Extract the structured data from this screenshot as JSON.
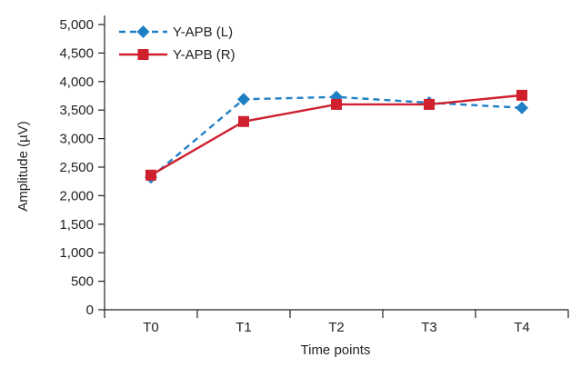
{
  "chart_data": {
    "type": "line",
    "categories": [
      "T0",
      "T1",
      "T2",
      "T3",
      "T4"
    ],
    "series": [
      {
        "name": "Y-APB (L)",
        "values": [
          2320,
          3690,
          3730,
          3630,
          3540
        ],
        "color": "#1f7fc4",
        "line_style": "dashed",
        "marker": "diamond"
      },
      {
        "name": "Y-APB (R)",
        "values": [
          2360,
          3300,
          3600,
          3600,
          3760
        ],
        "color": "#d0202e",
        "line_style": "solid",
        "marker": "square"
      }
    ],
    "xlabel": "Time points",
    "ylabel": "Amplitude (µV)",
    "ylim": [
      0,
      5000
    ],
    "yticks": [
      0,
      500,
      1000,
      1500,
      2000,
      2500,
      3000,
      3500,
      4000,
      4500,
      5000
    ],
    "ytick_labels": [
      "0",
      "500",
      "1,000",
      "1,500",
      "2,000",
      "2,500",
      "3,000",
      "3,500",
      "4,000",
      "4,500",
      "5,000"
    ],
    "grid": false,
    "legend_position": "top-left"
  }
}
